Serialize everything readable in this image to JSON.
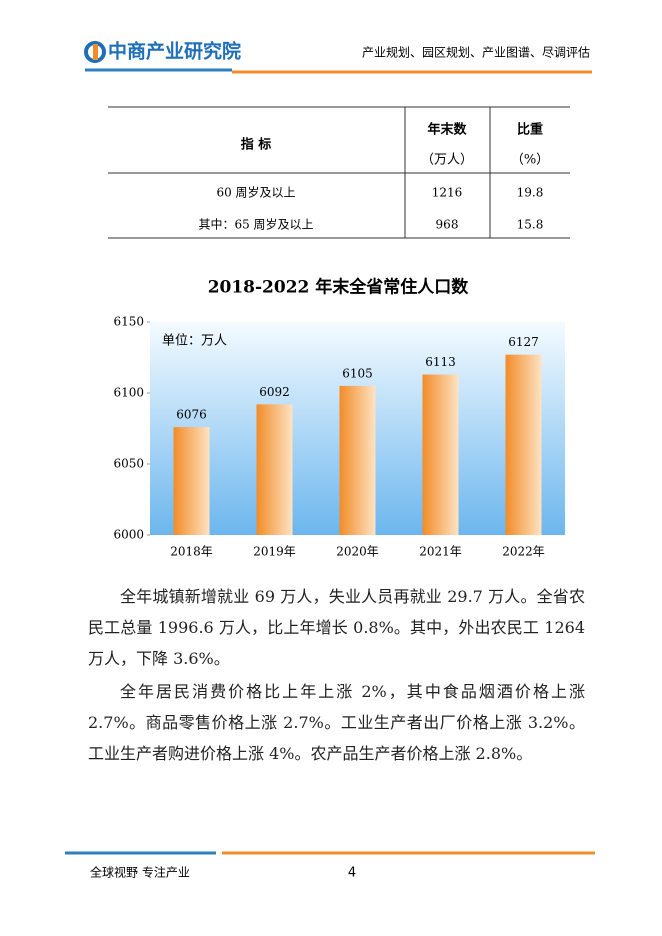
{
  "header": {
    "logo": "中商产业研究院",
    "tagline": "产业规划、园区规划、产业图谱、尽调评估"
  },
  "table": {
    "headers": [
      "指 标",
      "年末数",
      "（万人）",
      "比重",
      "（%）"
    ],
    "rows": [
      [
        "60 周岁及以上",
        1216,
        19.8
      ],
      [
        "其中：65 周岁及以上",
        968,
        15.8
      ]
    ]
  },
  "chart_data": {
    "type": "bar",
    "title": "2018-2022 年末全省常住人口数",
    "unit_label": "单位：万人",
    "categories": [
      "2018年",
      "2019年",
      "2020年",
      "2021年",
      "2022年"
    ],
    "values": [
      6076,
      6092,
      6105,
      6113,
      6127
    ],
    "color": "#f28c28",
    "ylim": [
      6000,
      6150
    ],
    "yticks": [
      6000,
      6050,
      6100,
      6150
    ]
  },
  "paragraphs": [
    "全年城镇新增就业 69 万人，失业人员再就业 29.7 万人。全省农民工总量 1996.6 万人，比上年增长 0.8%。其中，外出农民工 1264 万人，下降 3.6%。",
    "全年居民消费价格比上年上涨 2%，其中食品烟酒价格上涨 2.7%。商品零售价格上涨 2.7%。工业生产者出厂价格上涨 3.2%。工业生产者购进价格上涨 4%。农产品生产者价格上涨 2.8%。"
  ],
  "footer": {
    "slogan": "全球视野 专注产业",
    "page": "4"
  }
}
